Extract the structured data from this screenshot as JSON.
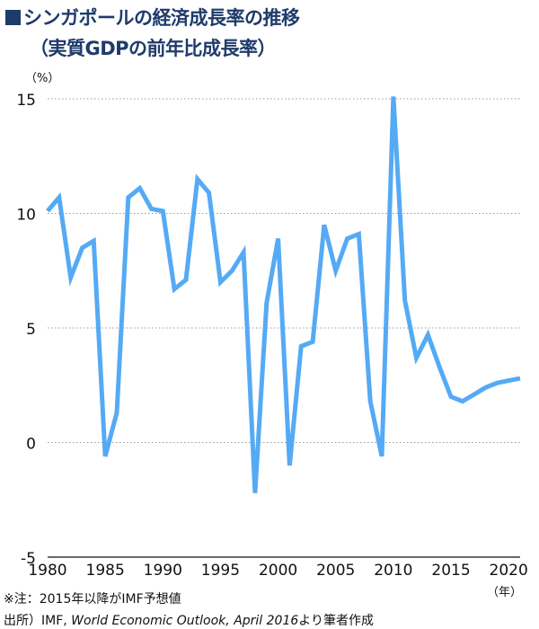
{
  "title": "シンガポールの経済成長率の推移",
  "subtitle": "（実質GDPの前年比成長率）",
  "note": "※注：2015年以降がIMF予想値",
  "source": {
    "prefix": "出所）IMF,",
    "publication": "World Economic Outlook, April 2016",
    "suffix": "より筆者作成"
  },
  "colors": {
    "title": "#1f3b6b",
    "line": "#55aaf5",
    "grid": "#9a9a9a"
  },
  "chart_data": {
    "type": "line",
    "title": "シンガポールの経済成長率の推移",
    "subtitle": "（実質GDPの前年比成長率）",
    "y_unit": "（%）",
    "x_unit": "（年）",
    "xlim": [
      1980,
      2021
    ],
    "ylim": [
      -5,
      15
    ],
    "yticks": [
      -5,
      0,
      5,
      10,
      15
    ],
    "xticks": [
      1980,
      1985,
      1990,
      1995,
      2000,
      2005,
      2010,
      2015,
      2020
    ],
    "grid": "horizontal dotted",
    "x": [
      1980,
      1981,
      1982,
      1983,
      1984,
      1985,
      1986,
      1987,
      1988,
      1989,
      1990,
      1991,
      1992,
      1993,
      1994,
      1995,
      1996,
      1997,
      1998,
      1999,
      2000,
      2001,
      2002,
      2003,
      2004,
      2005,
      2006,
      2007,
      2008,
      2009,
      2010,
      2011,
      2012,
      2013,
      2014,
      2015,
      2016,
      2017,
      2018,
      2019,
      2020,
      2021
    ],
    "values": [
      10.1,
      10.7,
      7.2,
      8.5,
      8.8,
      -0.6,
      1.3,
      10.7,
      11.1,
      10.2,
      10.1,
      6.7,
      7.1,
      11.5,
      10.9,
      7.0,
      7.5,
      8.3,
      -2.2,
      6.1,
      8.9,
      -1.0,
      4.2,
      4.4,
      9.5,
      7.5,
      8.9,
      9.1,
      1.8,
      -0.6,
      15.1,
      6.2,
      3.7,
      4.7,
      3.3,
      2.0,
      1.8,
      2.1,
      2.4,
      2.6,
      2.7,
      2.8
    ]
  }
}
